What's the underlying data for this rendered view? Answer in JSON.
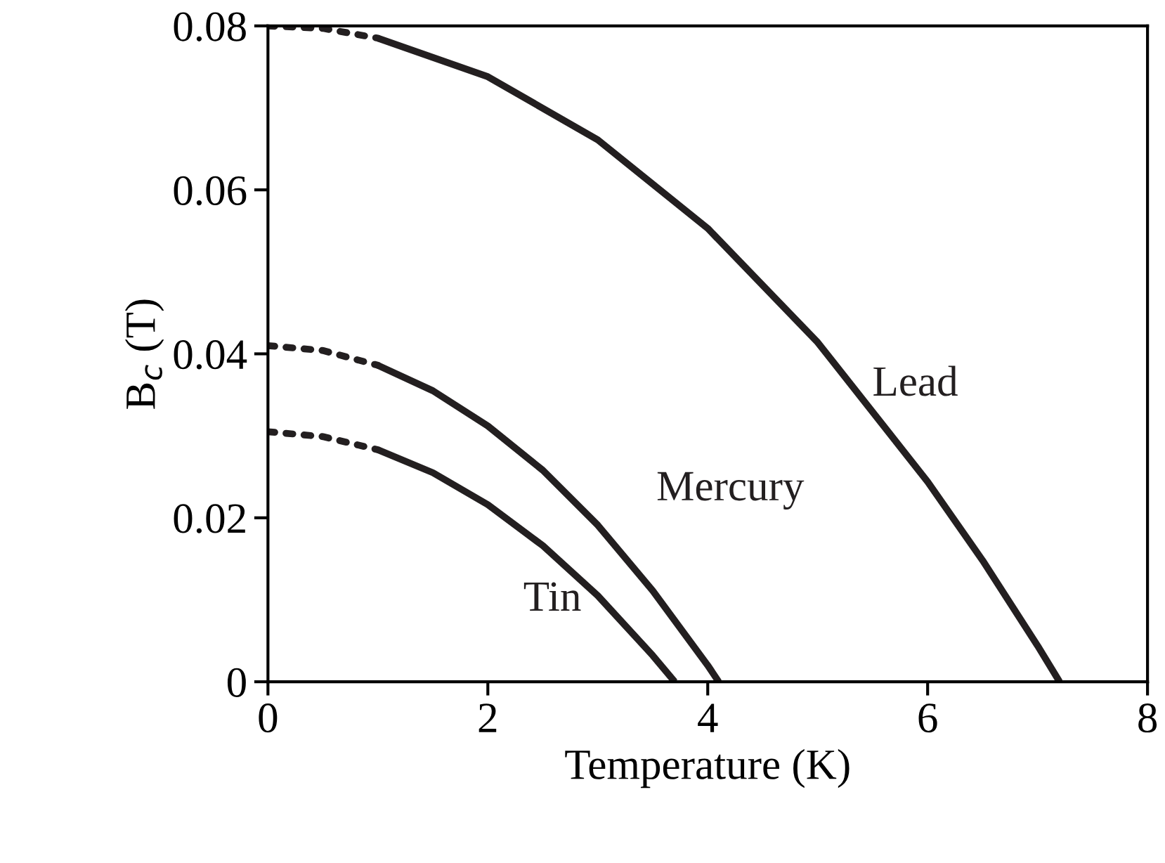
{
  "chart_data": {
    "type": "line",
    "xlabel": "Temperature (K)",
    "ylabel": "B$_{c}$ (T)",
    "xlim": [
      0,
      8
    ],
    "xticks": [
      0,
      2,
      4,
      6,
      8
    ],
    "ylim": [
      0,
      0.08
    ],
    "yticks": [
      0,
      0.02,
      0.04,
      0.06,
      0.08
    ],
    "grid": false,
    "legend": false,
    "marker": "none",
    "series": [
      {
        "name": "Lead",
        "color": "#231f20",
        "line_style": "solid",
        "x": [
          1,
          2,
          3,
          4,
          5,
          6,
          6.5,
          7,
          7.2
        ],
        "values": [
          0.0785,
          0.0738,
          0.0661,
          0.0553,
          0.0414,
          0.0244,
          0.0148,
          0.0044,
          0
        ]
      },
      {
        "color": "#231f20",
        "line_style": "dotted",
        "x": [
          0,
          0.5,
          1
        ],
        "values": [
          0.08,
          0.0797,
          0.0785
        ]
      },
      {
        "name": "Mercury",
        "color": "#231f20",
        "line_style": "solid",
        "x": [
          1,
          1.5,
          2,
          2.5,
          3,
          3.5,
          4,
          4.1
        ],
        "values": [
          0.0386,
          0.0355,
          0.0312,
          0.0258,
          0.0191,
          0.0111,
          0.002,
          0
        ]
      },
      {
        "color": "#231f20",
        "line_style": "dotted",
        "x": [
          0,
          0.5,
          1
        ],
        "values": [
          0.041,
          0.0404,
          0.0386
        ]
      },
      {
        "name": "Tin",
        "color": "#231f20",
        "line_style": "solid",
        "x": [
          1,
          1.5,
          2,
          2.5,
          3,
          3.5,
          3.7
        ],
        "values": [
          0.0283,
          0.0255,
          0.0216,
          0.0166,
          0.0105,
          0.0032,
          0
        ]
      },
      {
        "color": "#231f20",
        "line_style": "dotted",
        "x": [
          0,
          0.5,
          1
        ],
        "values": [
          0.0305,
          0.0299,
          0.0283
        ]
      }
    ]
  }
}
